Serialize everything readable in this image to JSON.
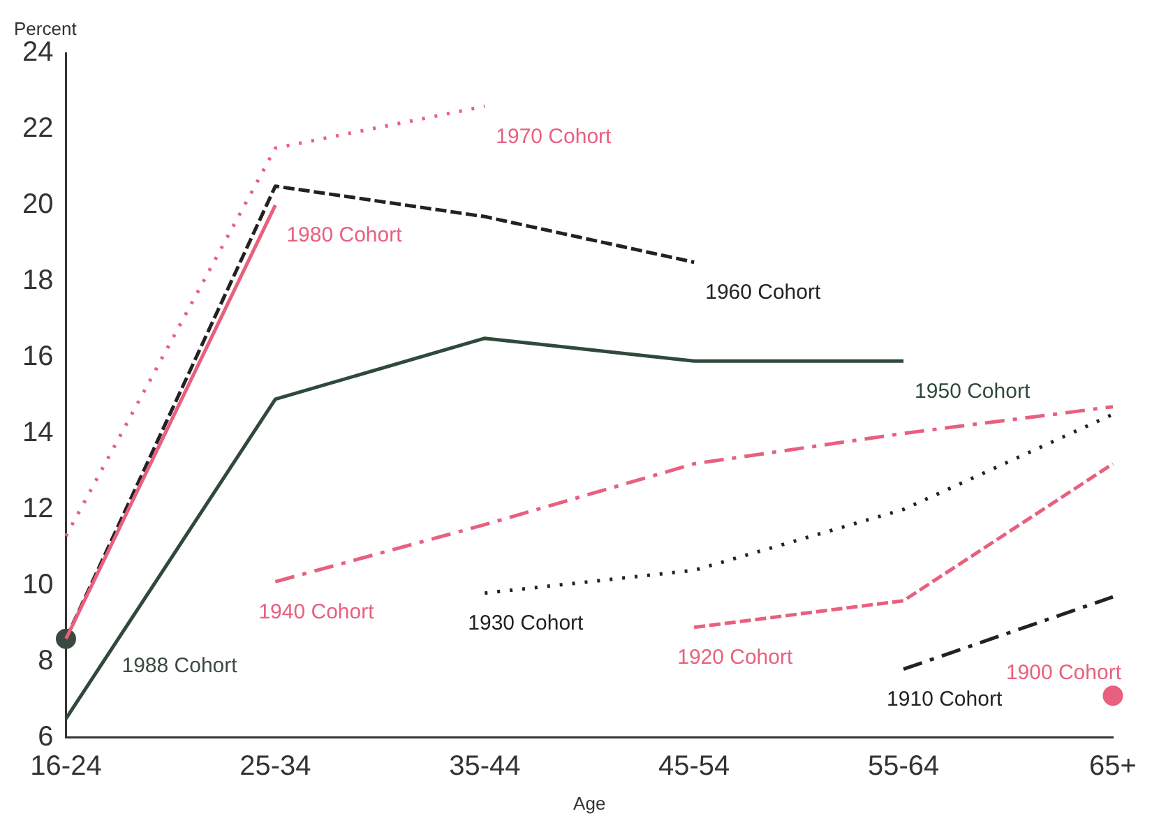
{
  "chart_data": {
    "type": "line",
    "xlabel": "Age",
    "ylabel": "Percent",
    "categories": [
      "16-24",
      "25-34",
      "35-44",
      "45-54",
      "55-64",
      "65+"
    ],
    "ylim": [
      6,
      24
    ],
    "yticks": [
      6,
      8,
      10,
      12,
      14,
      16,
      18,
      20,
      22,
      24
    ],
    "grid": false,
    "legend": false,
    "marker": "none",
    "series": [
      {
        "name": "1970 Cohort",
        "color": "#e8607e",
        "line_style": "dotted",
        "values": [
          11.3,
          21.5,
          22.6,
          null,
          null,
          null
        ]
      },
      {
        "name": "1980 Cohort",
        "color": "#e8607e",
        "line_style": "solid",
        "values": [
          8.6,
          20.0,
          null,
          null,
          null,
          null
        ]
      },
      {
        "name": "1960 Cohort",
        "color": "#222222",
        "line_style": "dashed",
        "values": [
          8.6,
          20.5,
          19.7,
          18.5,
          null,
          null
        ]
      },
      {
        "name": "1950 Cohort",
        "color": "#2f4a3a",
        "line_style": "solid",
        "values": [
          6.5,
          14.9,
          16.5,
          15.9,
          15.9,
          null
        ]
      },
      {
        "name": "1940 Cohort",
        "color": "#e8607e",
        "line_style": "dashdot",
        "values": [
          null,
          10.1,
          11.6,
          13.2,
          14.0,
          14.7
        ]
      },
      {
        "name": "1930 Cohort",
        "color": "#222222",
        "line_style": "dotted",
        "values": [
          null,
          null,
          9.8,
          10.4,
          12.0,
          14.5
        ]
      },
      {
        "name": "1920 Cohort",
        "color": "#e8607e",
        "line_style": "dashed",
        "values": [
          null,
          null,
          null,
          8.9,
          9.6,
          13.2
        ]
      },
      {
        "name": "1910 Cohort",
        "color": "#222222",
        "line_style": "dashdot",
        "values": [
          null,
          null,
          null,
          null,
          7.8,
          9.7
        ]
      },
      {
        "name": "1900 Cohort",
        "color": "#e8607e",
        "marker": "circle",
        "values": [
          null,
          null,
          null,
          null,
          null,
          7.1
        ]
      },
      {
        "name": "1988 Cohort",
        "color": "#3a4a40",
        "marker": "circle",
        "values": [
          8.6,
          null,
          null,
          null,
          null,
          null
        ]
      }
    ]
  }
}
